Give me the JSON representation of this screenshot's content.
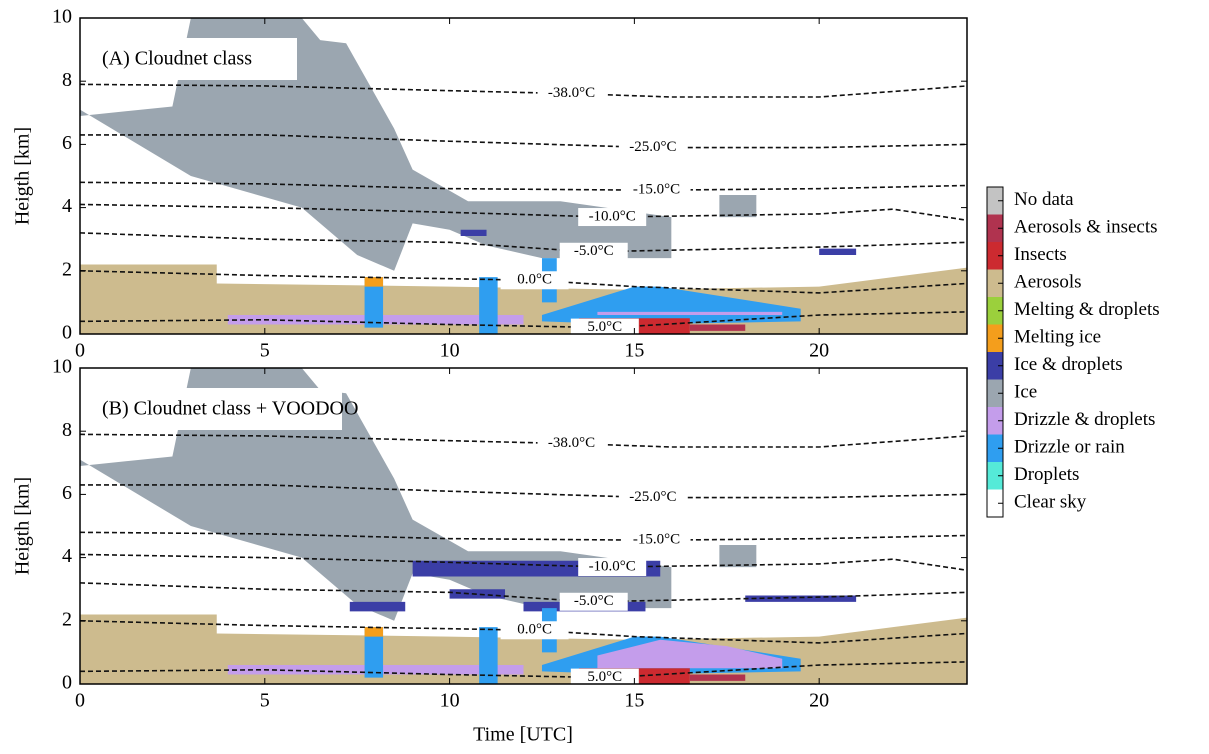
{
  "legend": [
    {
      "name": "No data",
      "color": "#c3c3c3"
    },
    {
      "name": "Aerosols & insects",
      "color": "#b0334f"
    },
    {
      "name": "Insects",
      "color": "#cc2a30"
    },
    {
      "name": "Aerosols",
      "color": "#cdbb8e"
    },
    {
      "name": "Melting & droplets",
      "color": "#9bd03c"
    },
    {
      "name": "Melting ice",
      "color": "#f49e1c"
    },
    {
      "name": "Ice & droplets",
      "color": "#3b3ea6"
    },
    {
      "name": "Ice",
      "color": "#9ba6b0"
    },
    {
      "name": "Drizzle & droplets",
      "color": "#c49deb"
    },
    {
      "name": "Drizzle or rain",
      "color": "#2f9ef0"
    },
    {
      "name": "Droplets",
      "color": "#55ead8"
    },
    {
      "name": "Clear sky",
      "color": "#ffffff"
    }
  ],
  "xlabel": "Time [UTC]",
  "chart_data": [
    {
      "type": "classification",
      "panel": "(A) Cloudnet class",
      "ylabel": "Heigth [km]",
      "xlim": [
        0,
        24
      ],
      "xticks": [
        0,
        5,
        10,
        15,
        20
      ],
      "ylim": [
        0,
        10
      ],
      "yticks": [
        0,
        2,
        4,
        6,
        8,
        10
      ],
      "isotherms": [
        {
          "label": "-38.0°C",
          "x": [
            0,
            5,
            10,
            13.5,
            16,
            20,
            24
          ],
          "y": [
            7.9,
            7.85,
            7.7,
            7.6,
            7.5,
            7.5,
            7.85
          ]
        },
        {
          "label": "-25.0°C",
          "x": [
            0,
            5,
            10,
            15.5,
            20,
            24
          ],
          "y": [
            6.3,
            6.3,
            6.1,
            5.9,
            5.9,
            6.0
          ]
        },
        {
          "label": "-15.0°C",
          "x": [
            0,
            5,
            10,
            15.5,
            20,
            24
          ],
          "y": [
            4.8,
            4.75,
            4.6,
            4.55,
            4.6,
            4.7
          ]
        },
        {
          "label": "-10.0°C",
          "x": [
            0,
            5,
            10,
            14.3,
            20,
            22,
            24
          ],
          "y": [
            4.1,
            4.0,
            3.85,
            3.7,
            3.8,
            3.95,
            3.6
          ]
        },
        {
          "label": "-5.0°C",
          "x": [
            0,
            5,
            10,
            13.8,
            20,
            24
          ],
          "y": [
            3.2,
            3.0,
            2.9,
            2.6,
            2.75,
            2.9
          ]
        },
        {
          "label": "0.0°C",
          "x": [
            0,
            5,
            10,
            12.3,
            15,
            20,
            24
          ],
          "y": [
            2.0,
            1.85,
            1.75,
            1.7,
            1.5,
            1.3,
            1.6
          ]
        },
        {
          "label": "5.0°C",
          "x": [
            0,
            5,
            10,
            14.3,
            20,
            24
          ],
          "y": [
            0.4,
            0.45,
            0.3,
            0.2,
            0.6,
            0.7
          ]
        }
      ],
      "regions": [
        {
          "class": "Aerosols",
          "x": [
            0,
            0,
            3.7,
            3.7,
            10,
            15,
            20,
            24,
            24
          ],
          "y": [
            0,
            2.2,
            2.2,
            1.6,
            1.5,
            1.4,
            1.5,
            2.1,
            0
          ]
        },
        {
          "class": "Ice",
          "x": [
            0,
            0,
            2.5,
            3,
            6,
            6.5,
            7.2,
            8.5,
            9,
            10.5,
            13,
            16,
            16,
            12.5,
            11,
            10,
            9,
            8.5,
            7.5,
            6,
            3,
            0
          ],
          "y": [
            10,
            6.9,
            7.2,
            10,
            10,
            9.3,
            9.2,
            6.5,
            5.2,
            4.2,
            4.2,
            3.7,
            2.4,
            2.4,
            2.8,
            3.3,
            3.5,
            2.0,
            2.5,
            4.0,
            5.0,
            7.1
          ]
        },
        {
          "class": "Ice",
          "x": [
            17.3,
            17.3,
            18.3,
            18.3
          ],
          "y": [
            3.7,
            4.4,
            4.4,
            3.7
          ]
        },
        {
          "class": "Drizzle & droplets",
          "x": [
            4,
            4,
            12,
            12
          ],
          "y": [
            0.3,
            0.6,
            0.6,
            0.3
          ]
        },
        {
          "class": "Drizzle or rain",
          "x": [
            12.5,
            15,
            15.7,
            19.5,
            19.5,
            15,
            12.5
          ],
          "y": [
            0.6,
            1.5,
            1.5,
            0.8,
            0.4,
            0.3,
            0.4
          ]
        },
        {
          "class": "Drizzle or rain",
          "x": [
            7.7,
            7.7,
            8.2,
            8.2
          ],
          "y": [
            0.2,
            1.8,
            1.8,
            0.2
          ]
        },
        {
          "class": "Drizzle or rain",
          "x": [
            10.8,
            10.8,
            11.3,
            11.3
          ],
          "y": [
            0,
            1.8,
            1.8,
            0
          ]
        },
        {
          "class": "Drizzle or rain",
          "x": [
            12.5,
            12.5,
            12.9,
            12.9
          ],
          "y": [
            1.0,
            2.4,
            2.4,
            1.0
          ]
        },
        {
          "class": "Drizzle & droplets",
          "x": [
            14,
            14,
            19,
            19
          ],
          "y": [
            0.6,
            0.7,
            0.7,
            0.6
          ]
        },
        {
          "class": "Insects",
          "x": [
            13.5,
            13.5,
            16.5,
            16.5
          ],
          "y": [
            0,
            0.5,
            0.5,
            0
          ]
        },
        {
          "class": "Aerosols & insects",
          "x": [
            16.5,
            16.5,
            18,
            18
          ],
          "y": [
            0.1,
            0.3,
            0.3,
            0.1
          ]
        },
        {
          "class": "Melting ice",
          "x": [
            7.7,
            7.7,
            8.2,
            8.2
          ],
          "y": [
            1.5,
            1.8,
            1.8,
            1.5
          ]
        },
        {
          "class": "Ice & droplets",
          "x": [
            10.3,
            10.3,
            11,
            11
          ],
          "y": [
            3.1,
            3.3,
            3.3,
            3.1
          ]
        },
        {
          "class": "Ice & droplets",
          "x": [
            20,
            20,
            21,
            21
          ],
          "y": [
            2.5,
            2.7,
            2.7,
            2.5
          ]
        }
      ]
    },
    {
      "type": "classification",
      "panel": "(B) Cloudnet class + VOODOO",
      "ylabel": "Heigth [km]",
      "xlim": [
        0,
        24
      ],
      "xticks": [
        0,
        5,
        10,
        15,
        20
      ],
      "ylim": [
        0,
        10
      ],
      "yticks": [
        0,
        2,
        4,
        6,
        8,
        10
      ],
      "isotherms": [
        {
          "label": "-38.0°C",
          "x": [
            0,
            5,
            10,
            13.5,
            16,
            20,
            24
          ],
          "y": [
            7.9,
            7.85,
            7.7,
            7.6,
            7.5,
            7.5,
            7.85
          ]
        },
        {
          "label": "-25.0°C",
          "x": [
            0,
            5,
            10,
            15.5,
            20,
            24
          ],
          "y": [
            6.3,
            6.3,
            6.1,
            5.9,
            5.9,
            6.0
          ]
        },
        {
          "label": "-15.0°C",
          "x": [
            0,
            5,
            10,
            15.5,
            20,
            24
          ],
          "y": [
            4.8,
            4.75,
            4.6,
            4.55,
            4.6,
            4.7
          ]
        },
        {
          "label": "-10.0°C",
          "x": [
            0,
            5,
            10,
            14.3,
            20,
            22,
            24
          ],
          "y": [
            4.1,
            4.0,
            3.85,
            3.7,
            3.8,
            3.95,
            3.6
          ]
        },
        {
          "label": "-5.0°C",
          "x": [
            0,
            5,
            10,
            13.8,
            20,
            24
          ],
          "y": [
            3.2,
            3.0,
            2.9,
            2.6,
            2.75,
            2.9
          ]
        },
        {
          "label": "0.0°C",
          "x": [
            0,
            5,
            10,
            12.3,
            15,
            20,
            24
          ],
          "y": [
            2.0,
            1.85,
            1.75,
            1.7,
            1.5,
            1.3,
            1.6
          ]
        },
        {
          "label": "5.0°C",
          "x": [
            0,
            5,
            10,
            14.3,
            20,
            24
          ],
          "y": [
            0.4,
            0.45,
            0.3,
            0.2,
            0.6,
            0.7
          ]
        }
      ],
      "regions": [
        {
          "class": "Aerosols",
          "x": [
            0,
            0,
            3.7,
            3.7,
            10,
            15,
            20,
            24,
            24
          ],
          "y": [
            0,
            2.2,
            2.2,
            1.6,
            1.5,
            1.4,
            1.5,
            2.1,
            0
          ]
        },
        {
          "class": "Ice",
          "x": [
            0,
            0,
            2.5,
            3,
            6,
            6.5,
            7.2,
            8.5,
            9,
            10.5,
            13,
            16,
            16,
            12.5,
            11,
            10,
            9,
            8.5,
            7.5,
            6,
            3,
            0
          ],
          "y": [
            10,
            6.9,
            7.2,
            10,
            10,
            9.3,
            9.2,
            6.5,
            5.2,
            4.2,
            4.2,
            3.7,
            2.4,
            2.4,
            2.8,
            3.3,
            3.5,
            2.0,
            2.5,
            4.0,
            5.0,
            7.1
          ]
        },
        {
          "class": "Ice",
          "x": [
            17.3,
            17.3,
            18.3,
            18.3
          ],
          "y": [
            3.7,
            4.4,
            4.4,
            3.7
          ]
        },
        {
          "class": "Ice & droplets",
          "x": [
            9,
            9,
            15.7,
            15.7
          ],
          "y": [
            3.4,
            3.9,
            3.9,
            3.4
          ]
        },
        {
          "class": "Ice & droplets",
          "x": [
            12,
            12,
            15.3,
            15.3
          ],
          "y": [
            2.3,
            2.6,
            2.6,
            2.3
          ]
        },
        {
          "class": "Ice & droplets",
          "x": [
            10,
            10,
            11.5,
            11.5
          ],
          "y": [
            2.7,
            3.0,
            3.0,
            2.7
          ]
        },
        {
          "class": "Ice & droplets",
          "x": [
            7.3,
            7.3,
            8.8,
            8.8
          ],
          "y": [
            2.3,
            2.6,
            2.6,
            2.3
          ]
        },
        {
          "class": "Ice & droplets",
          "x": [
            18,
            18,
            21,
            21
          ],
          "y": [
            2.6,
            2.8,
            2.8,
            2.6
          ]
        },
        {
          "class": "Drizzle & droplets",
          "x": [
            4,
            4,
            12,
            12
          ],
          "y": [
            0.3,
            0.6,
            0.6,
            0.3
          ]
        },
        {
          "class": "Drizzle or rain",
          "x": [
            12.5,
            15,
            15.7,
            19.5,
            19.5,
            15,
            12.5
          ],
          "y": [
            0.6,
            1.5,
            1.5,
            0.8,
            0.4,
            0.3,
            0.4
          ]
        },
        {
          "class": "Drizzle & droplets",
          "x": [
            14,
            15.7,
            17.5,
            19,
            19,
            14
          ],
          "y": [
            0.9,
            1.4,
            1.2,
            0.8,
            0.5,
            0.5
          ]
        },
        {
          "class": "Drizzle or rain",
          "x": [
            7.7,
            7.7,
            8.2,
            8.2
          ],
          "y": [
            0.2,
            1.8,
            1.8,
            0.2
          ]
        },
        {
          "class": "Drizzle or rain",
          "x": [
            10.8,
            10.8,
            11.3,
            11.3
          ],
          "y": [
            0,
            1.8,
            1.8,
            0
          ]
        },
        {
          "class": "Drizzle or rain",
          "x": [
            12.5,
            12.5,
            12.9,
            12.9
          ],
          "y": [
            1.0,
            2.4,
            2.4,
            1.0
          ]
        },
        {
          "class": "Insects",
          "x": [
            13.5,
            13.5,
            16.5,
            16.5
          ],
          "y": [
            0,
            0.5,
            0.5,
            0
          ]
        },
        {
          "class": "Aerosols & insects",
          "x": [
            16.5,
            16.5,
            18,
            18
          ],
          "y": [
            0.1,
            0.3,
            0.3,
            0.1
          ]
        },
        {
          "class": "Melting ice",
          "x": [
            7.7,
            7.7,
            8.2,
            8.2
          ],
          "y": [
            1.5,
            1.8,
            1.8,
            1.5
          ]
        }
      ]
    }
  ]
}
